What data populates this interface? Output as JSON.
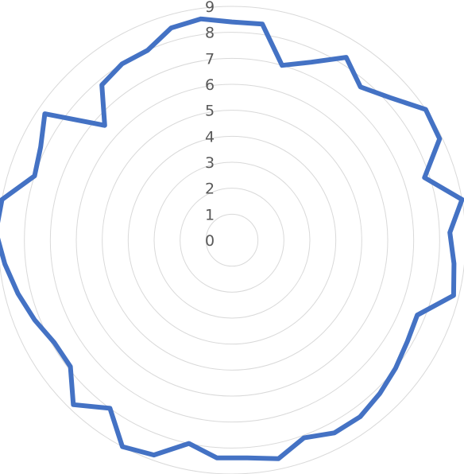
{
  "chart_data": {
    "type": "radar",
    "title": "",
    "r_ticks": [
      "0",
      "1",
      "2",
      "3",
      "4",
      "5",
      "6",
      "7",
      "8",
      "9"
    ],
    "r_range": [
      0,
      9
    ],
    "grid": true,
    "legend": "none",
    "start_angle_deg": -82,
    "series": [
      {
        "color": "#4472c4",
        "values": [
          8.4,
          7.0,
          7.5,
          8.3,
          7.7,
          8.2,
          9.0,
          8.9,
          7.8,
          9.0,
          8.4,
          8.6,
          8.8,
          7.7,
          7.8,
          8.0,
          8.2,
          8.4,
          8.4,
          8.1,
          8.6,
          8.4,
          8.4,
          8.0,
          8.8,
          9.0,
          8.0,
          8.8,
          7.9,
          7.9,
          8.2,
          8.5,
          8.8,
          9.1,
          9.0,
          8.0,
          8.2,
          8.7,
          6.6,
          7.8,
          8.0,
          8.0,
          8.5,
          8.6,
          8.4
        ]
      }
    ]
  }
}
